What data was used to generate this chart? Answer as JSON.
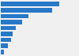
{
  "values": [
    100,
    88,
    47,
    36,
    26,
    21,
    17,
    12,
    6
  ],
  "bar_color": "#2878c8",
  "background_color": "#f0f0f0",
  "xlim": [
    0,
    118
  ],
  "bar_height": 0.72,
  "figsize": [
    1.0,
    0.71
  ],
  "dpi": 100
}
